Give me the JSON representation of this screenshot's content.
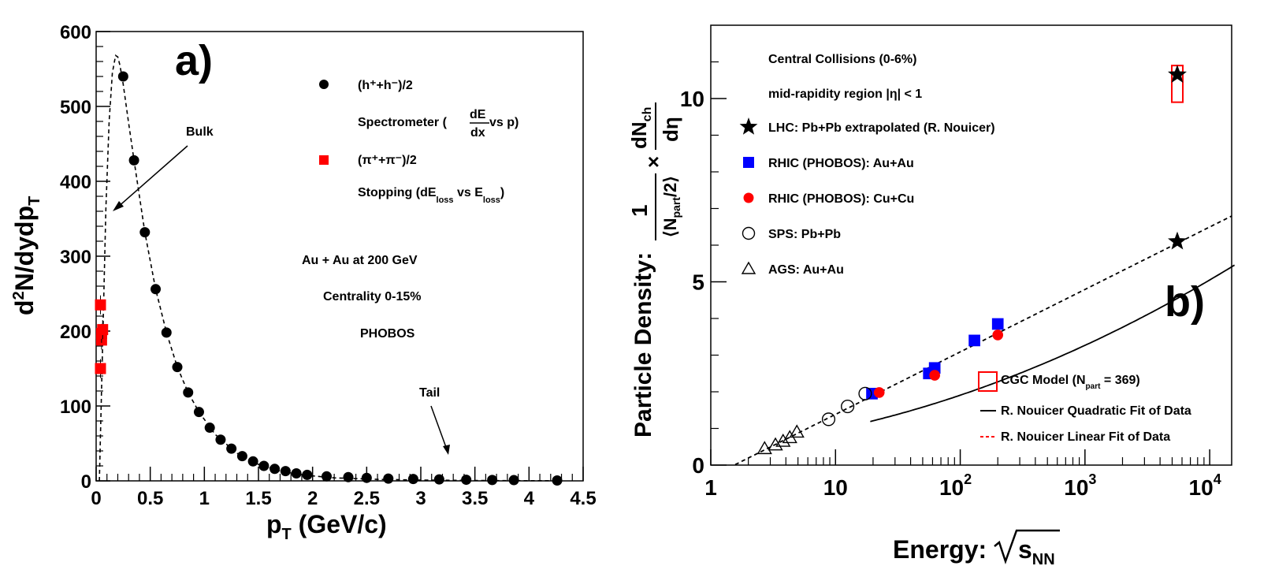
{
  "chart_data": [
    {
      "type": "scatter",
      "panel_label": "a)",
      "xlabel": "p",
      "xlabel_sub": "T",
      "xlabel_rest": " (GeV/c)",
      "ylabel_main": "N/dydp",
      "ylabel_prefix": "d",
      "ylabel_sup": "2",
      "ylabel_sub": "T",
      "xlim": [
        0,
        4.5
      ],
      "ylim": [
        0,
        600
      ],
      "x_ticks": [
        "0",
        "0.5",
        "1",
        "1.5",
        "2",
        "2.5",
        "3",
        "3.5",
        "4",
        "4.5"
      ],
      "y_ticks": [
        "0",
        "100",
        "200",
        "300",
        "400",
        "500",
        "600"
      ],
      "legend": {
        "charged_label": "(h⁺+h⁻)/2",
        "spectrometer_prefix": "Spectrometer (",
        "spectrometer_num": "dE",
        "spectrometer_den": "dx",
        "spectrometer_suffix": " vs p)",
        "pion_label": "(π⁺+π⁻)/2",
        "stopping_a": "Stopping (dE",
        "stopping_sub1": "loss",
        "stopping_b": " vs E",
        "stopping_sub2": "loss",
        "stopping_c": ")"
      },
      "annotations": {
        "system": "Au + Au at 200 GeV",
        "centrality": "Centrality 0-15%",
        "experiment": "PHOBOS",
        "bulk": "Bulk",
        "tail": "Tail"
      },
      "series": [
        {
          "name": "(h+ + h-)/2 Spectrometer",
          "marker": "circle",
          "color": "#000000",
          "x": [
            0.25,
            0.35,
            0.45,
            0.55,
            0.65,
            0.75,
            0.85,
            0.95,
            1.05,
            1.15,
            1.25,
            1.35,
            1.45,
            1.55,
            1.65,
            1.75,
            1.85,
            1.95,
            2.13,
            2.33,
            2.5,
            2.7,
            2.93,
            3.17,
            3.42,
            3.66,
            3.86,
            4.26
          ],
          "y": [
            540,
            428,
            332,
            256,
            198,
            152,
            118,
            92,
            71,
            55,
            43,
            33,
            26,
            20,
            16,
            13,
            10,
            8,
            6,
            5,
            4,
            3,
            2.5,
            2,
            1.5,
            1.2,
            1,
            0.5
          ]
        },
        {
          "name": "(pi+ + pi-)/2 Stopping",
          "marker": "square",
          "color": "#ff0000",
          "x": [
            0.04,
            0.05,
            0.05,
            0.06,
            0.04
          ],
          "y": [
            150,
            188,
            197,
            202,
            235
          ]
        }
      ],
      "fit_curve": {
        "style": "dashed",
        "x": [
          0.03,
          0.06,
          0.09,
          0.12,
          0.15,
          0.18,
          0.2,
          0.22,
          0.25,
          0.3,
          0.35,
          0.45,
          0.55,
          0.65,
          0.75,
          0.85,
          0.95,
          1.1,
          1.3,
          1.5,
          1.7,
          1.9,
          2.2,
          2.6,
          3.0,
          3.5,
          4.0,
          4.3
        ],
        "y": [
          0,
          180,
          365,
          480,
          545,
          568,
          566,
          555,
          530,
          478,
          428,
          332,
          256,
          198,
          152,
          118,
          92,
          62,
          37,
          22,
          13,
          8,
          4,
          2,
          1,
          0.5,
          0.2,
          0.1
        ]
      }
    },
    {
      "type": "scatter",
      "panel_label": "b)",
      "xscale": "log",
      "xlim": [
        1,
        15000
      ],
      "ylim": [
        0,
        12
      ],
      "xlabel": "Energy: ",
      "xlabel_var": "s",
      "xlabel_sub": "NN",
      "ylabel_prefix": "Particle Density: ",
      "ylabel_one": "1",
      "ylabel_den_left": "⟨N",
      "ylabel_den_sub": "part",
      "ylabel_den_right": "/2⟩",
      "ylabel_times": "×",
      "ylabel_num": "dN",
      "ylabel_num_sub": "ch",
      "ylabel_eta": "dη",
      "x_ticks": [
        {
          "value": 1,
          "label": "1"
        },
        {
          "value": 10,
          "label": "10"
        },
        {
          "value": 100,
          "label": "10",
          "exp": "2"
        },
        {
          "value": 1000,
          "label": "10",
          "exp": "3"
        },
        {
          "value": 10000,
          "label": "10",
          "exp": "4"
        }
      ],
      "y_ticks": [
        "0",
        "5",
        "10"
      ],
      "legend_header": {
        "line1": "Central Collisions (0-6%)",
        "line2": "mid-rapidity region |η| < 1"
      },
      "legend": [
        {
          "marker": "star",
          "label": "LHC: Pb+Pb extrapolated (R. Nouicer)",
          "color": "#000000"
        },
        {
          "marker": "square",
          "label": "RHIC (PHOBOS): Au+Au",
          "color": "#0000ff"
        },
        {
          "marker": "circle",
          "label": "RHIC (PHOBOS): Cu+Cu",
          "color": "#ff0000"
        },
        {
          "marker": "open-circle",
          "label": "SPS: Pb+Pb",
          "color": "#000000"
        },
        {
          "marker": "open-triangle",
          "label": "AGS: Au+Au",
          "color": "#000000"
        }
      ],
      "legend2": {
        "cgc_prefix": "CGC Model (N",
        "cgc_sub": "part",
        "cgc_suffix": " = 369)",
        "quadratic": "R. Nouicer Quadratic Fit of Data",
        "linear": "R. Nouicer Linear Fit of Data"
      },
      "series": [
        {
          "name": "LHC: Pb+Pb extrapolated",
          "marker": "star",
          "color": "#000000",
          "x": [
            5500,
            5500
          ],
          "y": [
            10.65,
            6.1
          ]
        },
        {
          "name": "RHIC (PHOBOS): Au+Au",
          "marker": "square",
          "color": "#0000ff",
          "x": [
            19.6,
            56,
            62.4,
            130,
            200
          ],
          "y": [
            1.95,
            2.5,
            2.65,
            3.4,
            3.85
          ]
        },
        {
          "name": "RHIC (PHOBOS): Cu+Cu",
          "marker": "circle",
          "color": "#ff0000",
          "x": [
            22.4,
            62.4,
            200
          ],
          "y": [
            1.98,
            2.45,
            3.55
          ]
        },
        {
          "name": "SPS: Pb+Pb",
          "marker": "open-circle",
          "color": "#000000",
          "x": [
            8.8,
            12.5,
            17.3
          ],
          "y": [
            1.25,
            1.6,
            1.95
          ]
        },
        {
          "name": "AGS: Au+Au",
          "marker": "open-triangle",
          "color": "#000000",
          "x": [
            2.7,
            3.3,
            3.8,
            4.3,
            4.9
          ],
          "y": [
            0.45,
            0.55,
            0.65,
            0.75,
            0.9
          ]
        }
      ],
      "cgc_model": {
        "x": 5500,
        "y_low": 9.9,
        "y_high": 10.9,
        "color": "#ff0000"
      },
      "fit_quadratic": {
        "a": 0.04,
        "b": 0.13,
        "c": 0.46
      },
      "fit_linear": {
        "a": -0.32,
        "b": 0.74
      }
    }
  ]
}
